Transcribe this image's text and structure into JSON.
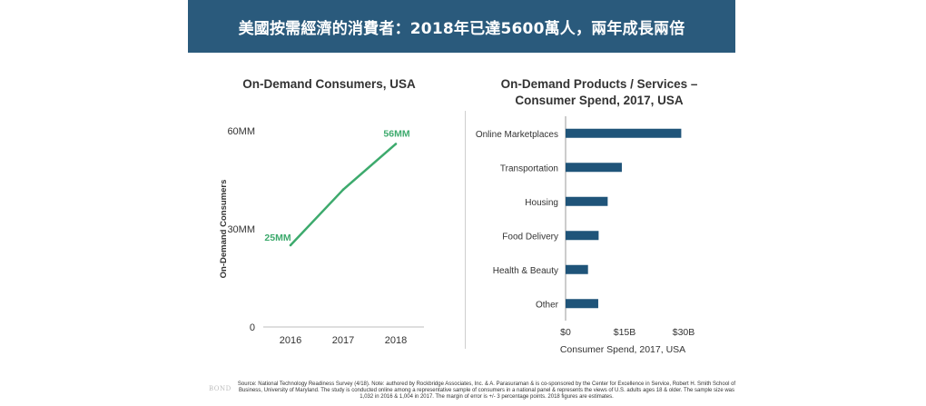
{
  "header": {
    "title": "美國按需經濟的消費者：2018年已達5600萬人，兩年成長兩倍",
    "color": "#2a5a7c"
  },
  "chart_data": [
    {
      "type": "line",
      "title": "On-Demand Consumers, USA",
      "xlabel": "",
      "ylabel": "On-Demand Consumers",
      "x": [
        "2016",
        "2017",
        "2018"
      ],
      "series": [
        {
          "values": [
            25,
            42,
            56
          ],
          "color": "#3daa6d"
        }
      ],
      "point_labels": [
        {
          "index": 0,
          "text": "25MM"
        },
        {
          "index": 2,
          "text": "56MM"
        }
      ],
      "yticks": [
        {
          "value": 0,
          "label": "0"
        },
        {
          "value": 30,
          "label": "30MM"
        },
        {
          "value": 60,
          "label": "60MM"
        }
      ],
      "ylim": [
        0,
        60
      ],
      "grid": false
    },
    {
      "type": "bar",
      "orientation": "horizontal",
      "title": "On-Demand Products / Services – Consumer Spend, 2017, USA",
      "title_lines": [
        "On-Demand Products / Services –",
        "Consumer Spend, 2017, USA"
      ],
      "xlabel": "Consumer Spend, 2017, USA",
      "ylabel": "",
      "categories": [
        "Online Marketplaces",
        "Transportation",
        "Housing",
        "Food Delivery",
        "Health & Beauty",
        "Other"
      ],
      "values": [
        29.4,
        14.3,
        10.7,
        8.4,
        5.7,
        8.3
      ],
      "xticks": [
        {
          "value": 0,
          "label": "$0"
        },
        {
          "value": 15,
          "label": "$15B"
        },
        {
          "value": 30,
          "label": "$30B"
        }
      ],
      "xlim": [
        0,
        30
      ],
      "bar_color": "#1f5479",
      "grid": false
    }
  ],
  "footer": {
    "source_text": "Source: National Technology Readiness Survey (4/18). Note: authored by Rockbridge Associates, Inc. & A. Parasuraman & is co-sponsored by the Center for Excellence in Service, Robert H. Smith School of Business, University of Maryland.  The study is conducted online among a representative sample of consumers in a national panel & represents the views of U.S. adults ages 18 & older.  The sample size was 1,032 in 2016 & 1,004 in 2017.  The margin of error is +/- 3 percentage points. 2018 figures are estimates.",
    "watermark": "BOND"
  }
}
